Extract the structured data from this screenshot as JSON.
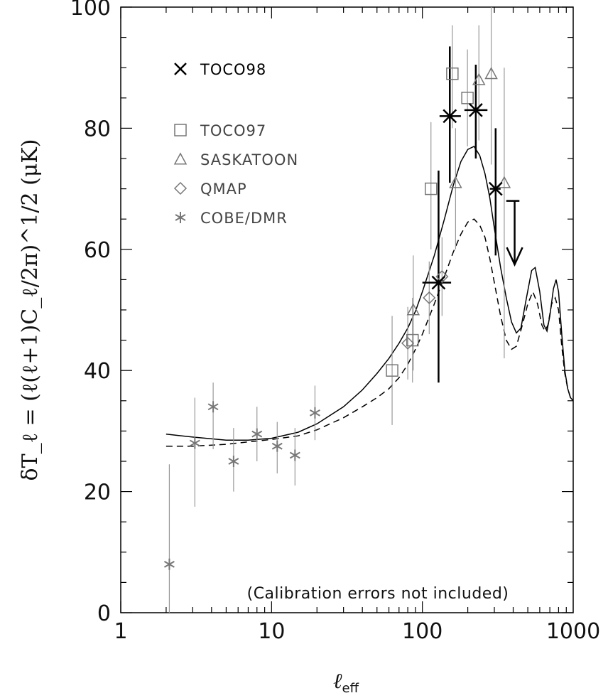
{
  "chart_data": {
    "type": "scatter",
    "xlabel": "ℓeff",
    "xlabel_main": "ℓ",
    "xlabel_sub": "eff",
    "ylabel": "δT_ℓ = (ℓ(ℓ+1)C_ℓ/2π)^1/2 (μK)",
    "x_scale": "log",
    "xlim": [
      1,
      1000
    ],
    "ylim": [
      0,
      100
    ],
    "x_ticks": [
      "1",
      "10",
      "100",
      "1000"
    ],
    "y_ticks": [
      "0",
      "20",
      "40",
      "60",
      "80",
      "100"
    ],
    "annotation": "(Calibration errors not included)",
    "legend": [
      {
        "label": "TOCO98",
        "marker": "cross",
        "color": "#000000"
      },
      {
        "label": "TOCO97",
        "marker": "square",
        "color": "#777777"
      },
      {
        "label": "SASKATOON",
        "marker": "triangle",
        "color": "#777777"
      },
      {
        "label": "QMAP",
        "marker": "diamond",
        "color": "#777777"
      },
      {
        "label": "COBE/DMR",
        "marker": "asterisk",
        "color": "#777777"
      }
    ],
    "series": [
      {
        "name": "COBE/DMR",
        "marker": "asterisk",
        "color": "#777777",
        "points": [
          {
            "x": 2.1,
            "y": 8.0,
            "ylo": 0,
            "yhi": 24.5
          },
          {
            "x": 3.1,
            "y": 28.0,
            "ylo": 17.5,
            "yhi": 35.5
          },
          {
            "x": 4.1,
            "y": 34.0,
            "ylo": 27.0,
            "yhi": 38.0
          },
          {
            "x": 5.6,
            "y": 25.0,
            "ylo": 20.0,
            "yhi": 30.5
          },
          {
            "x": 8.0,
            "y": 29.5,
            "ylo": 25.0,
            "yhi": 34.0
          },
          {
            "x": 10.9,
            "y": 27.5,
            "ylo": 23.0,
            "yhi": 31.5
          },
          {
            "x": 14.3,
            "y": 26.0,
            "ylo": 21.0,
            "yhi": 30.5
          },
          {
            "x": 19.4,
            "y": 33.0,
            "ylo": 28.5,
            "yhi": 37.5
          }
        ]
      },
      {
        "name": "QMAP",
        "marker": "diamond",
        "color": "#777777",
        "points": [
          {
            "x": 80,
            "y": 44.5,
            "ylo": 38.5,
            "yhi": 50.5
          },
          {
            "x": 111,
            "y": 52.0,
            "ylo": 46.0,
            "yhi": 58.0
          },
          {
            "x": 135,
            "y": 55.5,
            "ylo": 49.0,
            "yhi": 62.0
          }
        ]
      },
      {
        "name": "SASKATOON",
        "marker": "triangle",
        "color": "#777777",
        "points": [
          {
            "x": 87,
            "y": 50.0,
            "ylo": 40.0,
            "yhi": 59.0
          },
          {
            "x": 166,
            "y": 71.0,
            "ylo": 60.0,
            "yhi": 80.0
          },
          {
            "x": 237,
            "y": 88.0,
            "ylo": 78.0,
            "yhi": 97.0
          },
          {
            "x": 286,
            "y": 89.0,
            "ylo": 74.0,
            "yhi": 100
          },
          {
            "x": 349,
            "y": 71.0,
            "ylo": 42.0,
            "yhi": 90.0
          }
        ]
      },
      {
        "name": "TOCO97",
        "marker": "square",
        "color": "#777777",
        "points": [
          {
            "x": 63,
            "y": 40.0,
            "ylo": 31.0,
            "yhi": 49.0
          },
          {
            "x": 86,
            "y": 45.0,
            "ylo": 38.0,
            "yhi": 52.0
          },
          {
            "x": 114,
            "y": 70.0,
            "ylo": 60.0,
            "yhi": 81.0
          },
          {
            "x": 158,
            "y": 89.0,
            "ylo": 80.0,
            "yhi": 97.0
          },
          {
            "x": 199,
            "y": 85.0,
            "ylo": 77.0,
            "yhi": 93.0
          }
        ]
      },
      {
        "name": "TOCO98",
        "marker": "cross",
        "color": "#000000",
        "points": [
          {
            "x": 128,
            "y": 54.5,
            "ylo": 38.0,
            "yhi": 73.0,
            "xlo": 100,
            "xhi": 155
          },
          {
            "x": 152,
            "y": 82.0,
            "ylo": 71.0,
            "yhi": 93.5,
            "xlo": 130,
            "xhi": 180
          },
          {
            "x": 226,
            "y": 83.0,
            "ylo": 75.0,
            "yhi": 90.5,
            "xlo": 190,
            "xhi": 270
          },
          {
            "x": 306,
            "y": 70.0,
            "ylo": 59.0,
            "yhi": 80.0,
            "xlo": 280,
            "xhi": 330
          }
        ]
      },
      {
        "name": "TOCO98 upper limit",
        "marker": "upper-limit",
        "color": "#000000",
        "points": [
          {
            "x": 409,
            "y": 68.0,
            "xlo": 360,
            "xhi": 440,
            "arrow_to": 57.5
          }
        ]
      }
    ],
    "curves": [
      {
        "style": "solid",
        "color": "#000000",
        "points": [
          [
            2,
            29.5
          ],
          [
            3,
            29.0
          ],
          [
            5,
            28.5
          ],
          [
            7,
            28.5
          ],
          [
            10,
            28.8
          ],
          [
            15,
            29.8
          ],
          [
            20,
            31.2
          ],
          [
            30,
            34.0
          ],
          [
            40,
            36.8
          ],
          [
            50,
            39.5
          ],
          [
            60,
            42.0
          ],
          [
            70,
            44.5
          ],
          [
            80,
            47.0
          ],
          [
            90,
            49.8
          ],
          [
            100,
            53.0
          ],
          [
            120,
            59.0
          ],
          [
            140,
            65.0
          ],
          [
            160,
            70.5
          ],
          [
            180,
            74.5
          ],
          [
            200,
            76.5
          ],
          [
            220,
            77.0
          ],
          [
            240,
            75.5
          ],
          [
            260,
            72.5
          ],
          [
            280,
            68.5
          ],
          [
            300,
            63.5
          ],
          [
            330,
            57.0
          ],
          [
            360,
            52.0
          ],
          [
            390,
            48.0
          ],
          [
            420,
            46.2
          ],
          [
            450,
            47.0
          ],
          [
            490,
            52.0
          ],
          [
            530,
            56.5
          ],
          [
            560,
            57.0
          ],
          [
            600,
            53.0
          ],
          [
            640,
            47.5
          ],
          [
            670,
            46.5
          ],
          [
            700,
            49.0
          ],
          [
            740,
            53.5
          ],
          [
            770,
            55.0
          ],
          [
            800,
            53.0
          ],
          [
            840,
            46.0
          ],
          [
            880,
            40.0
          ],
          [
            920,
            37.0
          ],
          [
            960,
            35.5
          ],
          [
            1000,
            35.0
          ]
        ]
      },
      {
        "style": "dashed",
        "color": "#000000",
        "points": [
          [
            2,
            27.5
          ],
          [
            3,
            27.5
          ],
          [
            5,
            27.8
          ],
          [
            7,
            28.2
          ],
          [
            10,
            28.6
          ],
          [
            15,
            29.2
          ],
          [
            20,
            30.2
          ],
          [
            30,
            32.2
          ],
          [
            40,
            34.0
          ],
          [
            50,
            35.5
          ],
          [
            60,
            37.0
          ],
          [
            70,
            38.8
          ],
          [
            80,
            41.0
          ],
          [
            90,
            43.5
          ],
          [
            100,
            46.0
          ],
          [
            120,
            51.0
          ],
          [
            140,
            55.5
          ],
          [
            160,
            59.5
          ],
          [
            180,
            62.5
          ],
          [
            200,
            64.5
          ],
          [
            220,
            65.0
          ],
          [
            240,
            64.0
          ],
          [
            260,
            62.0
          ],
          [
            280,
            58.5
          ],
          [
            300,
            54.5
          ],
          [
            330,
            49.0
          ],
          [
            360,
            45.0
          ],
          [
            390,
            43.5
          ],
          [
            420,
            44.0
          ],
          [
            460,
            47.5
          ],
          [
            500,
            51.0
          ],
          [
            540,
            53.0
          ],
          [
            580,
            51.0
          ],
          [
            620,
            47.5
          ],
          [
            650,
            46.5
          ],
          [
            680,
            47.5
          ],
          [
            720,
            51.0
          ],
          [
            760,
            52.0
          ],
          [
            800,
            50.0
          ],
          [
            840,
            44.0
          ],
          [
            880,
            39.5
          ],
          [
            920,
            37.0
          ],
          [
            960,
            35.5
          ],
          [
            1000,
            35.0
          ]
        ]
      }
    ]
  }
}
